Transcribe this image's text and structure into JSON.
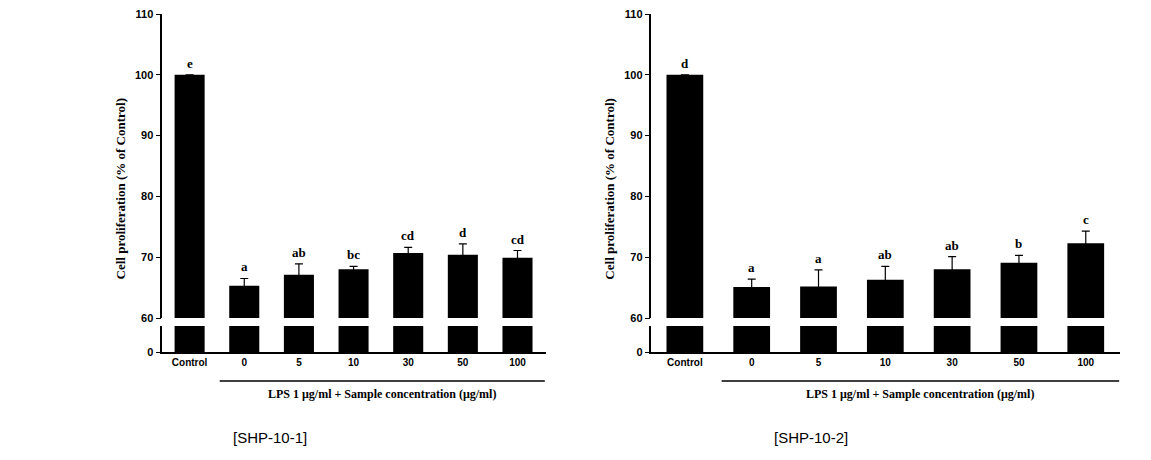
{
  "chart_data": [
    {
      "type": "bar",
      "title": "[SHP-10-1]",
      "y_label": "Cell proliferation (% of Control)",
      "x_label": "LPS 1 μg/ml + Sample concentration (μg/ml)",
      "categories": [
        "Control",
        "0",
        "5",
        "10",
        "30",
        "50",
        "100"
      ],
      "values": [
        100,
        65.3,
        67.1,
        68.0,
        70.7,
        70.4,
        69.9
      ],
      "errors": [
        0,
        1.2,
        1.8,
        0.5,
        0.9,
        1.8,
        1.2
      ],
      "significance": [
        "e",
        "a",
        "ab",
        "bc",
        "cd",
        "d",
        "cd"
      ],
      "color": "#000000",
      "ylim": [
        60,
        110
      ],
      "yticks": [
        60,
        70,
        80,
        90,
        100,
        110
      ],
      "y2lim": [
        0,
        5
      ],
      "y2ticks": [
        0
      ]
    },
    {
      "type": "bar",
      "title": "[SHP-10-2]",
      "y_label": "Cell proliferation (% of Control)",
      "x_label": "LPS 1 μg/ml + Sample concentration (μg/ml)",
      "categories": [
        "Control",
        "0",
        "5",
        "10",
        "30",
        "50",
        "100"
      ],
      "values": [
        100,
        65.1,
        65.2,
        66.3,
        68.0,
        69.1,
        72.3
      ],
      "errors": [
        0,
        1.3,
        2.7,
        2.2,
        2.1,
        1.2,
        2.0
      ],
      "significance": [
        "d",
        "a",
        "a",
        "ab",
        "ab",
        "b",
        "c"
      ],
      "color": "#000000",
      "ylim": [
        60,
        110
      ],
      "yticks": [
        60,
        70,
        80,
        90,
        100,
        110
      ],
      "y2lim": [
        0,
        5
      ],
      "y2ticks": [
        0
      ]
    }
  ]
}
